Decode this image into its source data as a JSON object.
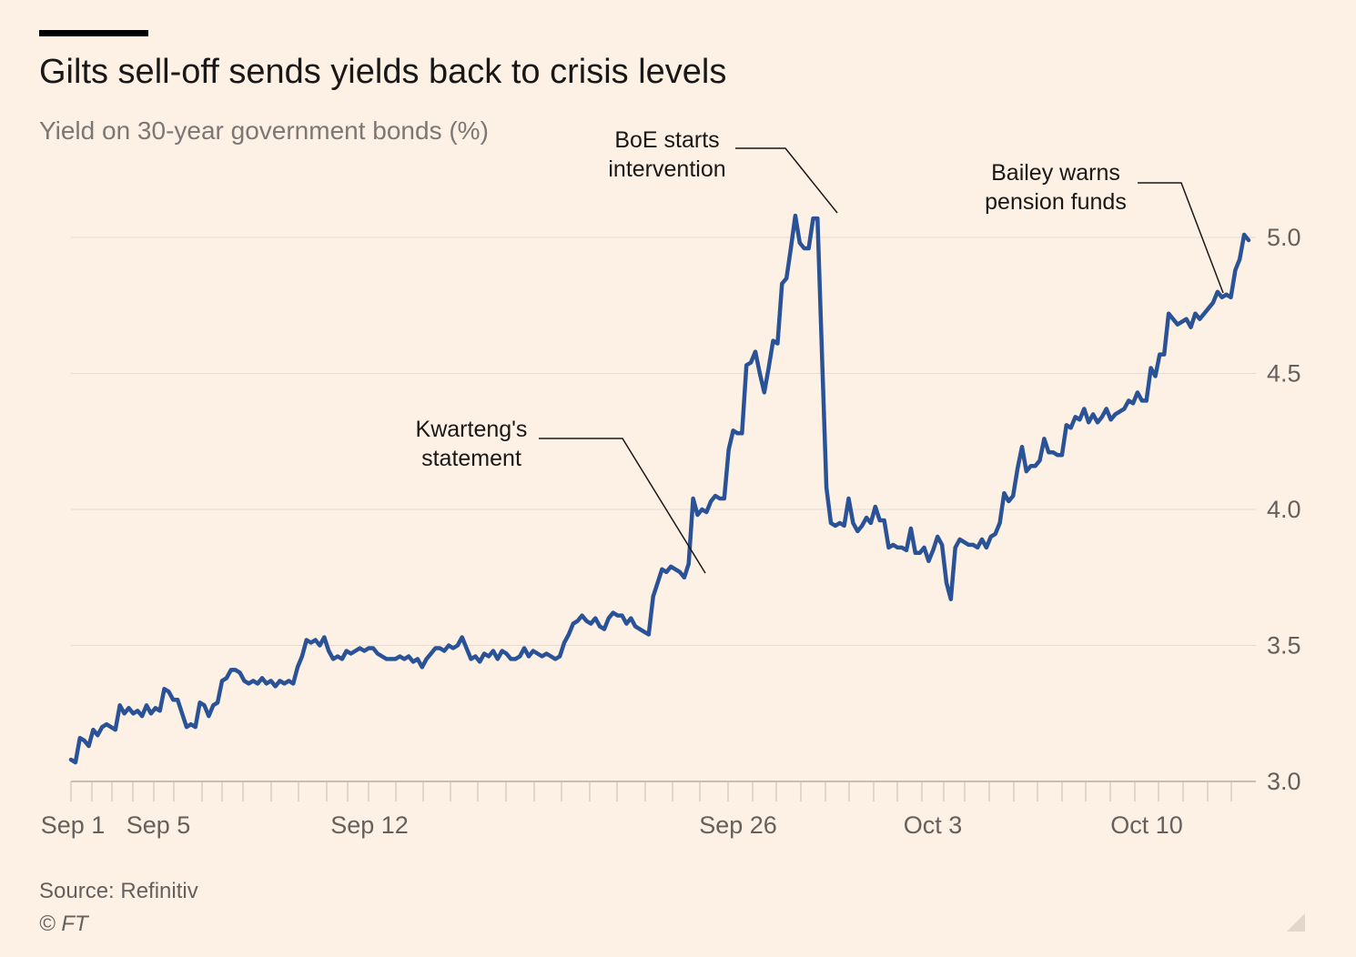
{
  "title": "Gilts sell-off sends yields back to crisis levels",
  "subtitle": "Yield on 30-year government bonds (%)",
  "source": "Source: Refinitiv",
  "copyright": "© FT",
  "colors": {
    "background": "#fdf1e6",
    "line": "#2a5297",
    "grid": "#e5dbd2",
    "axis_text": "#66605c",
    "annotation_text": "#1a1817"
  },
  "chart_data": {
    "type": "line",
    "title": "Gilts sell-off sends yields back to crisis levels",
    "ylabel": "Yield on 30-year government bonds (%)",
    "ylim": [
      3.0,
      5.0
    ],
    "y_ticks": [
      3.0,
      3.5,
      4.0,
      4.5,
      5.0
    ],
    "y_tick_labels": [
      "3.0",
      "3.5",
      "4.0",
      "4.5",
      "5.0"
    ],
    "x_tick_labels": [
      "Sep 1",
      "Sep 5",
      "Sep 12",
      "Sep 26",
      "Oct 3",
      "Oct 10"
    ],
    "grid": true,
    "series": [
      {
        "points": [
          [
            "Sep 1",
            3.08
          ],
          [
            "Sep 1",
            3.07
          ],
          [
            "Sep 1",
            3.16
          ],
          [
            "Sep 1",
            3.15
          ],
          [
            "Sep 2",
            3.13
          ],
          [
            "Sep 2",
            3.19
          ],
          [
            "Sep 2",
            3.17
          ],
          [
            "Sep 2",
            3.2
          ],
          [
            "Sep 2",
            3.21
          ],
          [
            "Sep 2",
            3.2
          ],
          [
            "Sep 2",
            3.19
          ],
          [
            "Sep 2",
            3.28
          ],
          [
            "Sep 2",
            3.25
          ],
          [
            "Sep 2",
            3.27
          ],
          [
            "Sep 5",
            3.25
          ],
          [
            "Sep 5",
            3.26
          ],
          [
            "Sep 5",
            3.24
          ],
          [
            "Sep 5",
            3.28
          ],
          [
            "Sep 5",
            3.25
          ],
          [
            "Sep 5",
            3.27
          ],
          [
            "Sep 5",
            3.26
          ],
          [
            "Sep 5",
            3.34
          ],
          [
            "Sep 5",
            3.33
          ],
          [
            "Sep 6",
            3.3
          ],
          [
            "Sep 6",
            3.3
          ],
          [
            "Sep 6",
            3.25
          ],
          [
            "Sep 6",
            3.2
          ],
          [
            "Sep 6",
            3.21
          ],
          [
            "Sep 6",
            3.2
          ],
          [
            "Sep 6",
            3.29
          ],
          [
            "Sep 7",
            3.28
          ],
          [
            "Sep 7",
            3.24
          ],
          [
            "Sep 7",
            3.28
          ],
          [
            "Sep 7",
            3.29
          ],
          [
            "Sep 7",
            3.37
          ],
          [
            "Sep 7",
            3.38
          ],
          [
            "Sep 8",
            3.41
          ],
          [
            "Sep 8",
            3.41
          ],
          [
            "Sep 8",
            3.4
          ],
          [
            "Sep 8",
            3.37
          ],
          [
            "Sep 8",
            3.36
          ],
          [
            "Sep 8",
            3.37
          ],
          [
            "Sep 8",
            3.36
          ],
          [
            "Sep 8",
            3.38
          ],
          [
            "Sep 9",
            3.36
          ],
          [
            "Sep 9",
            3.37
          ],
          [
            "Sep 9",
            3.35
          ],
          [
            "Sep 9",
            3.37
          ],
          [
            "Sep 9",
            3.36
          ],
          [
            "Sep 9",
            3.37
          ],
          [
            "Sep 9",
            3.36
          ],
          [
            "Sep 9",
            3.42
          ],
          [
            "Sep 9",
            3.46
          ],
          [
            "Sep 12",
            3.52
          ],
          [
            "Sep 12",
            3.51
          ],
          [
            "Sep 12",
            3.52
          ],
          [
            "Sep 12",
            3.5
          ],
          [
            "Sep 12",
            3.53
          ],
          [
            "Sep 12",
            3.48
          ],
          [
            "Sep 12",
            3.45
          ],
          [
            "Sep 12",
            3.46
          ],
          [
            "Sep 13",
            3.45
          ],
          [
            "Sep 13",
            3.48
          ],
          [
            "Sep 13",
            3.47
          ],
          [
            "Sep 13",
            3.48
          ],
          [
            "Sep 13",
            3.49
          ],
          [
            "Sep 13",
            3.48
          ],
          [
            "Sep 13",
            3.49
          ],
          [
            "Sep 13",
            3.49
          ],
          [
            "Sep 14",
            3.47
          ],
          [
            "Sep 14",
            3.46
          ],
          [
            "Sep 14",
            3.45
          ],
          [
            "Sep 14",
            3.45
          ],
          [
            "Sep 14",
            3.45
          ],
          [
            "Sep 14",
            3.46
          ],
          [
            "Sep 14",
            3.45
          ],
          [
            "Sep 14",
            3.46
          ],
          [
            "Sep 15",
            3.44
          ],
          [
            "Sep 15",
            3.45
          ],
          [
            "Sep 15",
            3.42
          ],
          [
            "Sep 15",
            3.45
          ],
          [
            "Sep 15",
            3.47
          ],
          [
            "Sep 15",
            3.49
          ],
          [
            "Sep 15",
            3.49
          ],
          [
            "Sep 15",
            3.48
          ],
          [
            "Sep 16",
            3.5
          ],
          [
            "Sep 16",
            3.49
          ],
          [
            "Sep 16",
            3.5
          ],
          [
            "Sep 16",
            3.53
          ],
          [
            "Sep 16",
            3.49
          ],
          [
            "Sep 16",
            3.45
          ],
          [
            "Sep 16",
            3.46
          ],
          [
            "Sep 16",
            3.44
          ],
          [
            "Sep 16",
            3.47
          ],
          [
            "Sep 19",
            3.46
          ],
          [
            "Sep 19",
            3.48
          ],
          [
            "Sep 19",
            3.45
          ],
          [
            "Sep 19",
            3.48
          ],
          [
            "Sep 19",
            3.47
          ],
          [
            "Sep 19",
            3.45
          ],
          [
            "Sep 19",
            3.45
          ],
          [
            "Sep 19",
            3.46
          ],
          [
            "Sep 20",
            3.49
          ],
          [
            "Sep 20",
            3.46
          ],
          [
            "Sep 20",
            3.48
          ],
          [
            "Sep 20",
            3.47
          ],
          [
            "Sep 20",
            3.46
          ],
          [
            "Sep 20",
            3.47
          ],
          [
            "Sep 20",
            3.46
          ],
          [
            "Sep 20",
            3.45
          ],
          [
            "Sep 20",
            3.46
          ],
          [
            "Sep 20",
            3.51
          ],
          [
            "Sep 21",
            3.54
          ],
          [
            "Sep 21",
            3.58
          ],
          [
            "Sep 21",
            3.59
          ],
          [
            "Sep 21",
            3.61
          ],
          [
            "Sep 21",
            3.59
          ],
          [
            "Sep 21",
            3.58
          ],
          [
            "Sep 21",
            3.6
          ],
          [
            "Sep 21",
            3.57
          ],
          [
            "Sep 21",
            3.56
          ],
          [
            "Sep 21",
            3.6
          ],
          [
            "Sep 22",
            3.62
          ],
          [
            "Sep 22",
            3.61
          ],
          [
            "Sep 22",
            3.61
          ],
          [
            "Sep 22",
            3.58
          ],
          [
            "Sep 22",
            3.6
          ],
          [
            "Sep 22",
            3.57
          ],
          [
            "Sep 22",
            3.56
          ],
          [
            "Sep 23",
            3.55
          ],
          [
            "Sep 23",
            3.54
          ],
          [
            "Sep 23",
            3.68
          ],
          [
            "Sep 23",
            3.73
          ],
          [
            "Sep 23",
            3.78
          ],
          [
            "Sep 23",
            3.77
          ],
          [
            "Sep 23",
            3.79
          ],
          [
            "Sep 23",
            3.78
          ],
          [
            "Sep 23",
            3.77
          ],
          [
            "Sep 23",
            3.75
          ],
          [
            "Sep 23",
            3.8
          ],
          [
            "Sep 23",
            4.04
          ],
          [
            "Sep 26",
            3.98
          ],
          [
            "Sep 26",
            4.0
          ],
          [
            "Sep 26",
            3.99
          ],
          [
            "Sep 26",
            4.03
          ],
          [
            "Sep 26",
            4.05
          ],
          [
            "Sep 26",
            4.04
          ],
          [
            "Sep 26",
            4.04
          ],
          [
            "Sep 26",
            4.22
          ],
          [
            "Sep 26",
            4.29
          ],
          [
            "Sep 26",
            4.28
          ],
          [
            "Sep 27",
            4.28
          ],
          [
            "Sep 27",
            4.53
          ],
          [
            "Sep 27",
            4.54
          ],
          [
            "Sep 27",
            4.58
          ],
          [
            "Sep 27",
            4.5
          ],
          [
            "Sep 27",
            4.43
          ],
          [
            "Sep 27",
            4.52
          ],
          [
            "Sep 27",
            4.62
          ],
          [
            "Sep 27",
            4.61
          ],
          [
            "Sep 27",
            4.83
          ],
          [
            "Sep 27",
            4.85
          ],
          [
            "Sep 27",
            4.96
          ],
          [
            "Sep 28",
            5.08
          ],
          [
            "Sep 28",
            4.98
          ],
          [
            "Sep 28",
            4.96
          ],
          [
            "Sep 28",
            4.96
          ],
          [
            "Sep 28",
            5.07
          ],
          [
            "Sep 28",
            5.07
          ],
          [
            "Sep 28",
            4.57
          ],
          [
            "Sep 28",
            4.08
          ],
          [
            "Sep 28",
            3.95
          ],
          [
            "Sep 29",
            3.94
          ],
          [
            "Sep 29",
            3.95
          ],
          [
            "Sep 29",
            3.94
          ],
          [
            "Sep 29",
            4.04
          ],
          [
            "Sep 29",
            3.95
          ],
          [
            "Sep 29",
            3.92
          ],
          [
            "Sep 29",
            3.94
          ],
          [
            "Sep 30",
            3.97
          ],
          [
            "Sep 30",
            3.95
          ],
          [
            "Sep 30",
            4.01
          ],
          [
            "Sep 30",
            3.96
          ],
          [
            "Sep 30",
            3.96
          ],
          [
            "Sep 30",
            3.86
          ],
          [
            "Sep 30",
            3.87
          ],
          [
            "Sep 30",
            3.86
          ],
          [
            "Oct 3",
            3.86
          ],
          [
            "Oct 3",
            3.85
          ],
          [
            "Oct 3",
            3.93
          ],
          [
            "Oct 3",
            3.84
          ],
          [
            "Oct 3",
            3.84
          ],
          [
            "Oct 3",
            3.86
          ],
          [
            "Oct 3",
            3.81
          ],
          [
            "Oct 3",
            3.85
          ],
          [
            "Oct 3",
            3.9
          ],
          [
            "Oct 3",
            3.87
          ],
          [
            "Oct 4",
            3.73
          ],
          [
            "Oct 4",
            3.67
          ],
          [
            "Oct 4",
            3.86
          ],
          [
            "Oct 4",
            3.89
          ],
          [
            "Oct 4",
            3.88
          ],
          [
            "Oct 4",
            3.87
          ],
          [
            "Oct 4",
            3.87
          ],
          [
            "Oct 4",
            3.86
          ],
          [
            "Oct 4",
            3.89
          ],
          [
            "Oct 4",
            3.86
          ],
          [
            "Oct 5",
            3.9
          ],
          [
            "Oct 5",
            3.91
          ],
          [
            "Oct 5",
            3.95
          ],
          [
            "Oct 5",
            4.06
          ],
          [
            "Oct 5",
            4.03
          ],
          [
            "Oct 5",
            4.05
          ],
          [
            "Oct 5",
            4.15
          ],
          [
            "Oct 6",
            4.23
          ],
          [
            "Oct 6",
            4.14
          ],
          [
            "Oct 6",
            4.16
          ],
          [
            "Oct 6",
            4.16
          ],
          [
            "Oct 6",
            4.18
          ],
          [
            "Oct 6",
            4.26
          ],
          [
            "Oct 6",
            4.21
          ],
          [
            "Oct 6",
            4.21
          ],
          [
            "Oct 6",
            4.2
          ],
          [
            "Oct 7",
            4.2
          ],
          [
            "Oct 7",
            4.31
          ],
          [
            "Oct 7",
            4.3
          ],
          [
            "Oct 7",
            4.34
          ],
          [
            "Oct 7",
            4.33
          ],
          [
            "Oct 7",
            4.37
          ],
          [
            "Oct 7",
            4.32
          ],
          [
            "Oct 7",
            4.35
          ],
          [
            "Oct 7",
            4.32
          ],
          [
            "Oct 7",
            4.34
          ],
          [
            "Oct 10",
            4.37
          ],
          [
            "Oct 10",
            4.33
          ],
          [
            "Oct 10",
            4.35
          ],
          [
            "Oct 10",
            4.36
          ],
          [
            "Oct 10",
            4.37
          ],
          [
            "Oct 10",
            4.4
          ],
          [
            "Oct 10",
            4.39
          ],
          [
            "Oct 10",
            4.43
          ],
          [
            "Oct 10",
            4.4
          ],
          [
            "Oct 10",
            4.4
          ],
          [
            "Oct 10",
            4.52
          ],
          [
            "Oct 11",
            4.49
          ],
          [
            "Oct 11",
            4.57
          ],
          [
            "Oct 11",
            4.57
          ],
          [
            "Oct 11",
            4.72
          ],
          [
            "Oct 11",
            4.7
          ],
          [
            "Oct 11",
            4.68
          ],
          [
            "Oct 11",
            4.69
          ],
          [
            "Oct 11",
            4.7
          ],
          [
            "Oct 12",
            4.67
          ],
          [
            "Oct 12",
            4.72
          ],
          [
            "Oct 12",
            4.7
          ],
          [
            "Oct 12",
            4.72
          ],
          [
            "Oct 12",
            4.74
          ],
          [
            "Oct 12",
            4.76
          ],
          [
            "Oct 12",
            4.8
          ],
          [
            "Oct 12",
            4.78
          ],
          [
            "Oct 12",
            4.79
          ],
          [
            "Oct 12",
            4.78
          ],
          [
            "Oct 13",
            4.88
          ],
          [
            "Oct 13",
            4.92
          ],
          [
            "Oct 13",
            5.01
          ],
          [
            "Oct 13",
            4.99
          ]
        ]
      }
    ],
    "annotations": [
      {
        "lines": [
          "Kwarteng's",
          "statement"
        ],
        "at_date": "Sep 23",
        "at_value": 3.76
      },
      {
        "lines": [
          "BoE starts",
          "intervention"
        ],
        "at_date": "Sep 28",
        "at_value": 5.07
      },
      {
        "lines": [
          "Bailey warns",
          "pension funds"
        ],
        "at_date": "Oct 12",
        "at_value": 4.78
      }
    ]
  }
}
